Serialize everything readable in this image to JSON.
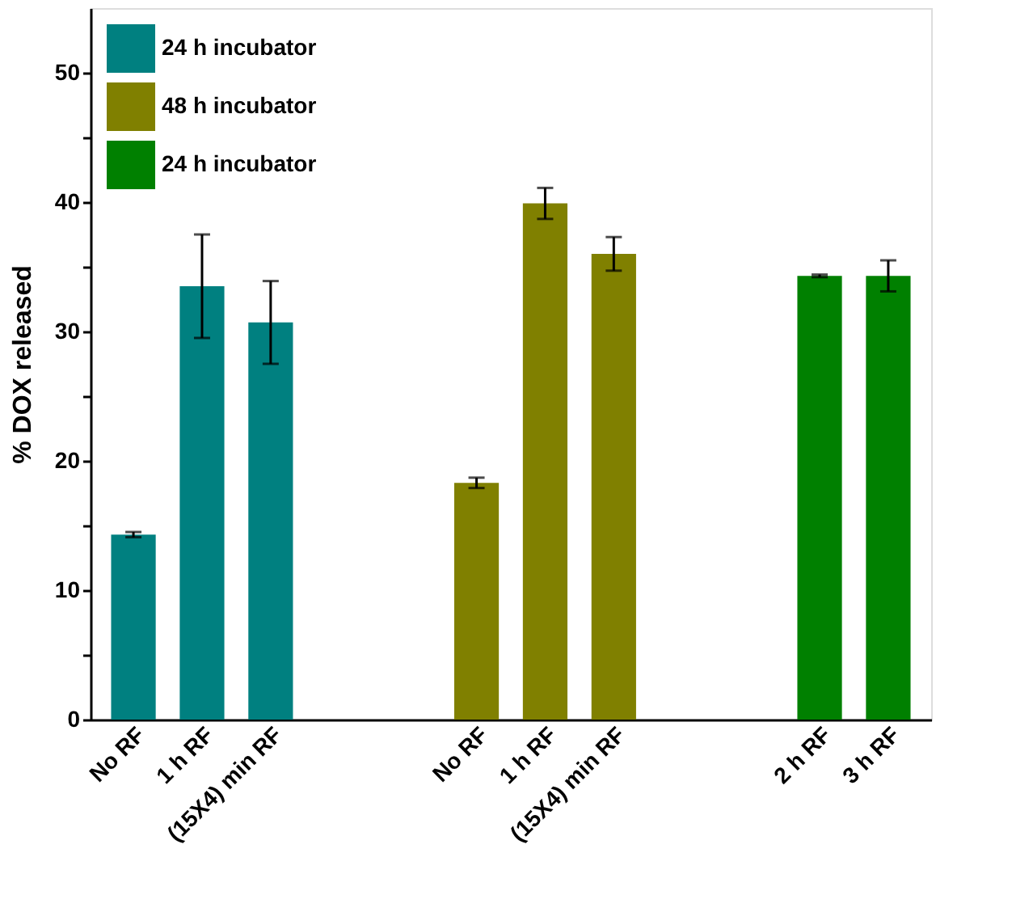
{
  "chart_data": {
    "type": "bar",
    "ylabel": "% DOX released",
    "categories": [
      "No RF",
      "1 h RF",
      "(15X4) min RF",
      null,
      null,
      "No RF",
      "1 h RF",
      "(15X4) min RF",
      null,
      null,
      "2 h RF",
      "3 h RF"
    ],
    "series": [
      {
        "name": "24 h incubator",
        "color": "#008080",
        "values": [
          14.3,
          33.5,
          30.7,
          null,
          null,
          null,
          null,
          null,
          null,
          null,
          null,
          null
        ],
        "errors": [
          0.2,
          4.0,
          3.2,
          null,
          null,
          null,
          null,
          null,
          null,
          null,
          null,
          null
        ]
      },
      {
        "name": "48 h incubator",
        "color": "#808000",
        "values": [
          null,
          null,
          null,
          null,
          null,
          18.3,
          39.9,
          36.0,
          null,
          null,
          null,
          null
        ],
        "errors": [
          null,
          null,
          null,
          null,
          null,
          0.4,
          1.2,
          1.3,
          null,
          null,
          null,
          null
        ]
      },
      {
        "name": "24 h incubator",
        "color": "#008000",
        "values": [
          null,
          null,
          null,
          null,
          null,
          null,
          null,
          null,
          null,
          null,
          34.3,
          34.3
        ],
        "errors": [
          null,
          null,
          null,
          null,
          null,
          null,
          null,
          null,
          null,
          null,
          0.1,
          1.2
        ]
      }
    ],
    "ylim": [
      0,
      55
    ],
    "yticks": [
      0,
      {
        "value": 5,
        "label": null
      },
      10,
      {
        "value": 15,
        "label": null
      },
      20,
      {
        "value": 25,
        "label": null
      },
      30,
      {
        "value": 35,
        "label": null
      },
      40,
      {
        "value": 45,
        "label": null
      },
      50
    ],
    "grid": false,
    "legend": "top left"
  }
}
